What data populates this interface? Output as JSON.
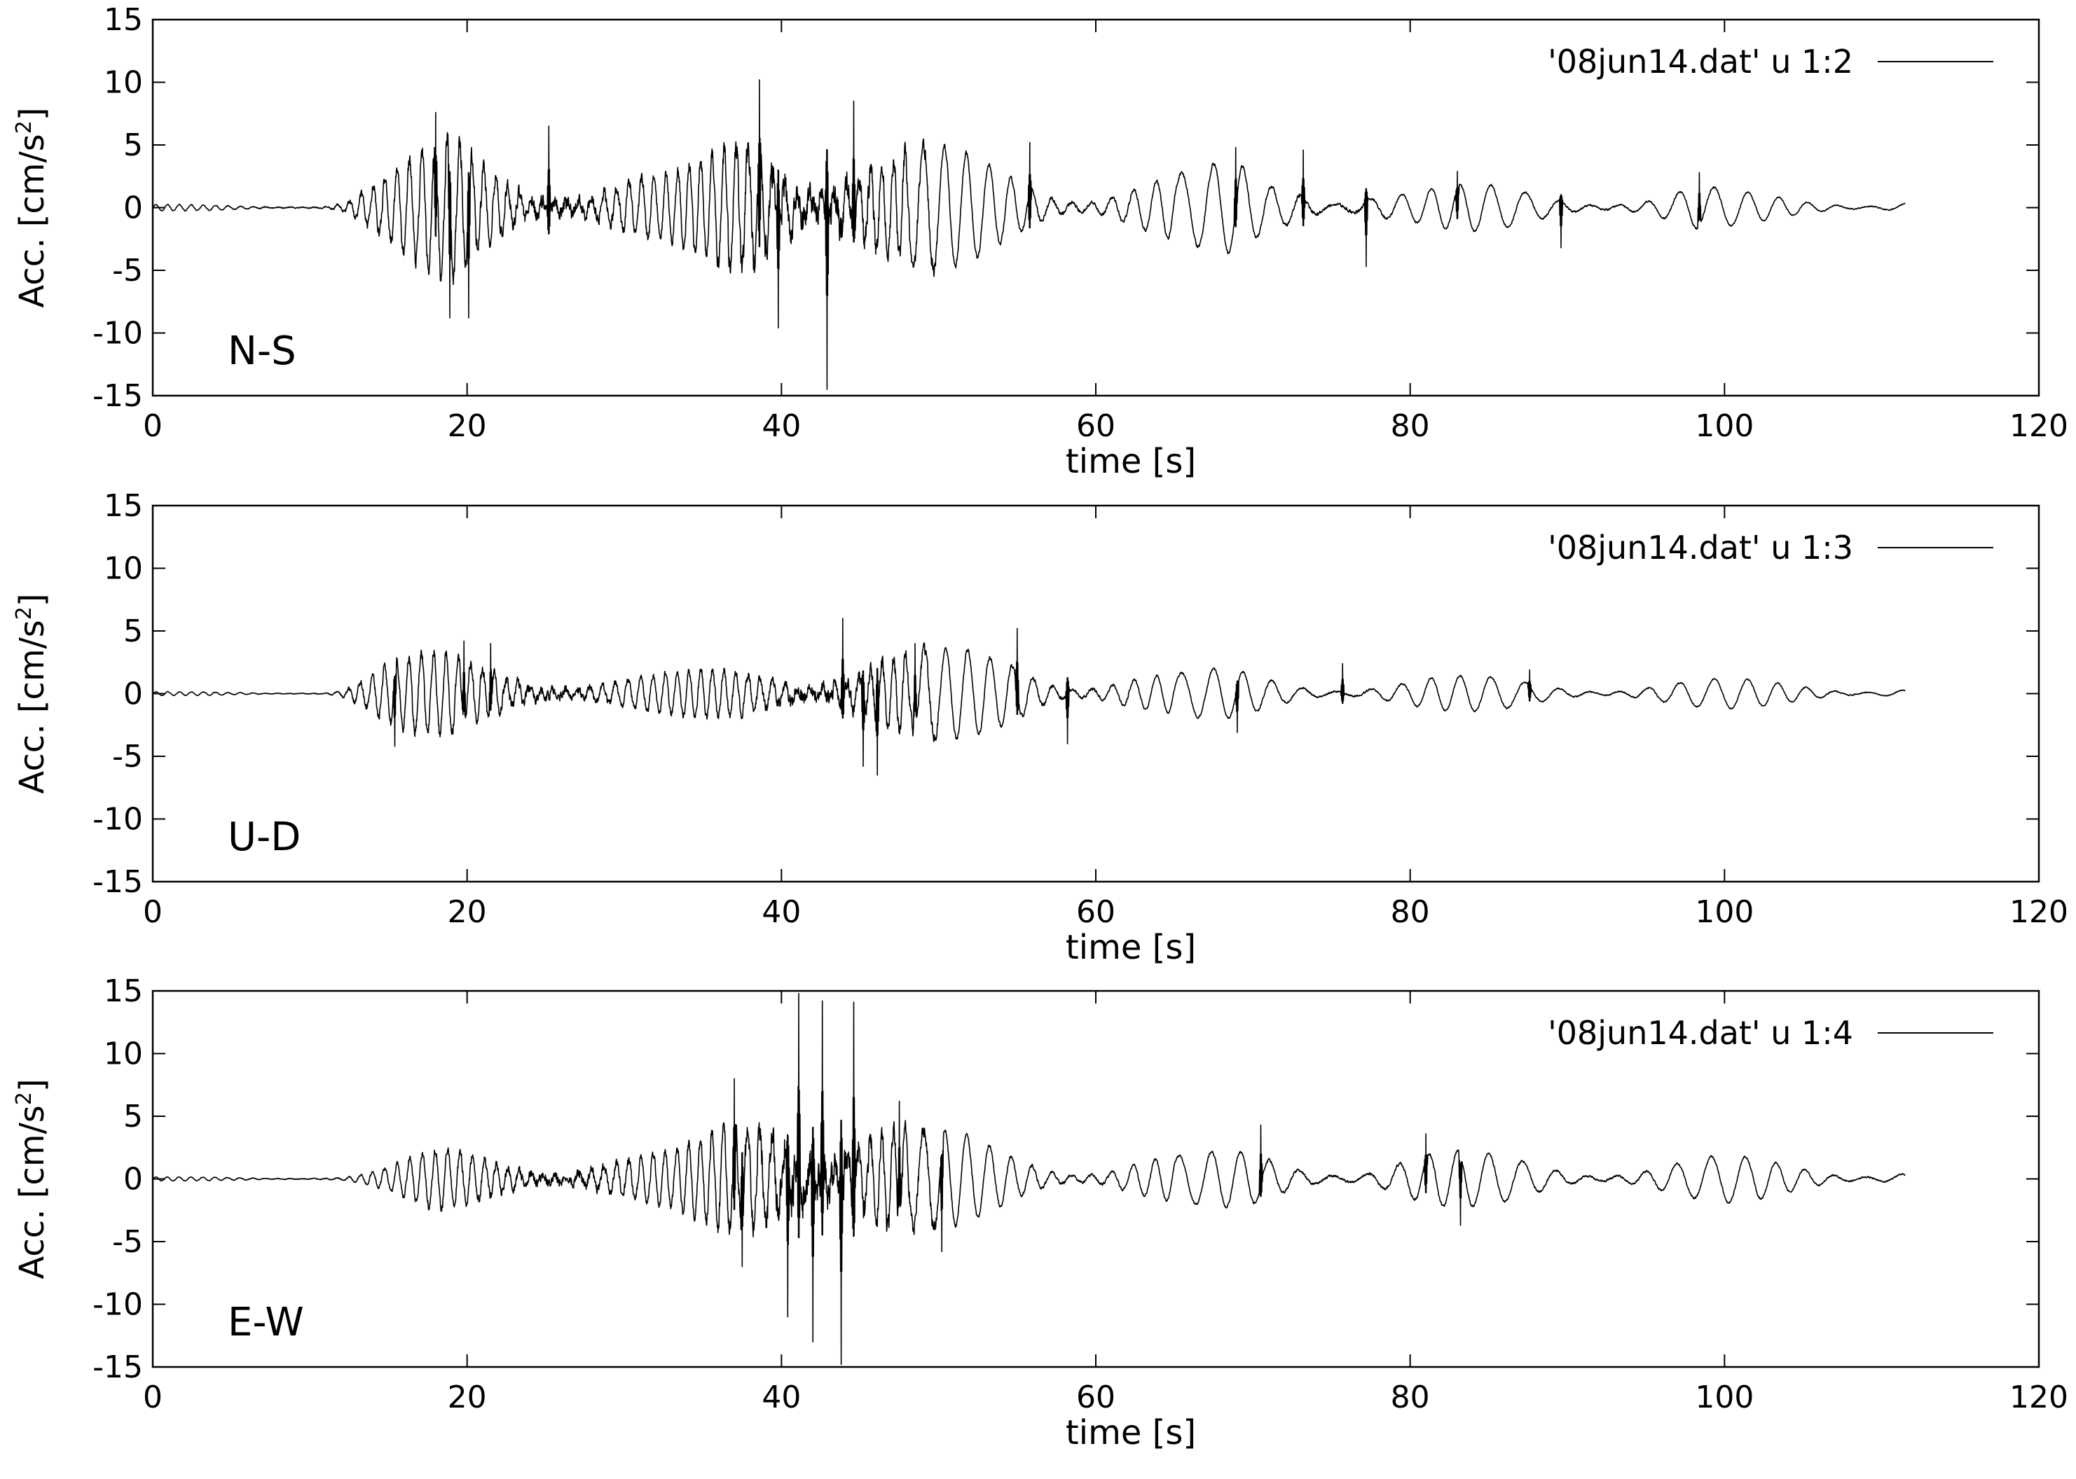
{
  "chart_data": [
    {
      "type": "line",
      "component": "N-S",
      "legend": "'08jun14.dat' u 1:2",
      "xlabel": "time [s]",
      "ylabel": "Acc. [cm/s2]",
      "ylabel_main": "Acc. [cm/s",
      "ylabel_sup": "2",
      "ylabel_close": "]",
      "xlim": [
        0,
        120
      ],
      "ylim": [
        -15,
        15
      ],
      "xticks": [
        "0",
        "20",
        "40",
        "60",
        "80",
        "100",
        "120"
      ],
      "yticks": [
        "15",
        "10",
        "5",
        "0",
        "-5",
        "-10",
        "-15"
      ],
      "legend_position": "top-right",
      "line_color": "#000000",
      "duration_s": 111.5,
      "envelope": [
        [
          0,
          0.25
        ],
        [
          11,
          0.3
        ],
        [
          12,
          0.8
        ],
        [
          13,
          1.8
        ],
        [
          15,
          3.2
        ],
        [
          17,
          4.5
        ],
        [
          19,
          6.5
        ],
        [
          21,
          5.0
        ],
        [
          24,
          4.2
        ],
        [
          26,
          4.5
        ],
        [
          28,
          3.2
        ],
        [
          30,
          3.3
        ],
        [
          33,
          2.8
        ],
        [
          35,
          4.0
        ],
        [
          37,
          6.5
        ],
        [
          38,
          8.2
        ],
        [
          39,
          9.5
        ],
        [
          40,
          8.5
        ],
        [
          42,
          8.0
        ],
        [
          43,
          10.5
        ],
        [
          45,
          7.5
        ],
        [
          47,
          5.8
        ],
        [
          50,
          5.0
        ],
        [
          53,
          4.3
        ],
        [
          55,
          4.2
        ],
        [
          57,
          3.8
        ],
        [
          60,
          3.4
        ],
        [
          63,
          3.2
        ],
        [
          66,
          3.0
        ],
        [
          69,
          4.0
        ],
        [
          71,
          2.8
        ],
        [
          73,
          3.6
        ],
        [
          75,
          2.7
        ],
        [
          77,
          3.3
        ],
        [
          80,
          1.8
        ],
        [
          85,
          1.9
        ],
        [
          90,
          1.8
        ],
        [
          95,
          1.4
        ],
        [
          98,
          2.0
        ],
        [
          101,
          1.3
        ],
        [
          105,
          1.0
        ],
        [
          111.5,
          1.0
        ]
      ],
      "peaks": [
        [
          18.0,
          7.6
        ],
        [
          18.9,
          -8.8
        ],
        [
          20.1,
          -8.8
        ],
        [
          25.2,
          6.5
        ],
        [
          38.6,
          10.2
        ],
        [
          39.8,
          -9.6
        ],
        [
          42.9,
          -14.5
        ],
        [
          44.6,
          8.5
        ],
        [
          55.8,
          5.2
        ],
        [
          68.9,
          4.8
        ],
        [
          73.2,
          4.6
        ],
        [
          77.2,
          -4.7
        ],
        [
          83.0,
          2.9
        ],
        [
          89.6,
          -3.2
        ],
        [
          98.4,
          2.8
        ]
      ],
      "seed": 11
    },
    {
      "type": "line",
      "component": "U-D",
      "legend": "'08jun14.dat' u 1:3",
      "xlabel": "time [s]",
      "ylabel": "Acc. [cm/s2]",
      "ylabel_main": "Acc. [cm/s",
      "ylabel_sup": "2",
      "ylabel_close": "]",
      "xlim": [
        0,
        120
      ],
      "ylim": [
        -15,
        15
      ],
      "xticks": [
        "0",
        "20",
        "40",
        "60",
        "80",
        "100",
        "120"
      ],
      "yticks": [
        "15",
        "10",
        "5",
        "0",
        "-5",
        "-10",
        "-15"
      ],
      "legend_position": "top-right",
      "line_color": "#000000",
      "duration_s": 111.5,
      "envelope": [
        [
          0,
          0.15
        ],
        [
          11,
          0.2
        ],
        [
          12,
          0.6
        ],
        [
          13,
          1.5
        ],
        [
          15,
          2.8
        ],
        [
          18,
          3.4
        ],
        [
          21,
          3.3
        ],
        [
          24,
          3.0
        ],
        [
          27,
          2.3
        ],
        [
          30,
          1.8
        ],
        [
          33,
          1.7
        ],
        [
          36,
          2.2
        ],
        [
          39,
          2.9
        ],
        [
          42,
          3.6
        ],
        [
          44,
          4.6
        ],
        [
          46,
          4.5
        ],
        [
          50,
          3.6
        ],
        [
          53,
          3.7
        ],
        [
          55,
          4.1
        ],
        [
          58,
          3.2
        ],
        [
          60,
          3.0
        ],
        [
          62,
          2.6
        ],
        [
          65,
          1.8
        ],
        [
          69,
          2.1
        ],
        [
          72,
          1.7
        ],
        [
          78,
          1.6
        ],
        [
          85,
          1.4
        ],
        [
          90,
          1.3
        ],
        [
          95,
          1.3
        ],
        [
          100,
          1.2
        ],
        [
          105,
          1.1
        ],
        [
          111.5,
          0.9
        ]
      ],
      "peaks": [
        [
          15.4,
          -4.2
        ],
        [
          19.8,
          4.2
        ],
        [
          21.5,
          4.0
        ],
        [
          43.9,
          6.0
        ],
        [
          45.2,
          -5.8
        ],
        [
          46.1,
          -6.5
        ],
        [
          48.5,
          4.0
        ],
        [
          55.0,
          5.2
        ],
        [
          58.2,
          -4.0
        ],
        [
          69.0,
          -3.1
        ],
        [
          75.7,
          2.4
        ],
        [
          87.6,
          1.9
        ]
      ],
      "seed": 22
    },
    {
      "type": "line",
      "component": "E-W",
      "legend": "'08jun14.dat' u 1:4",
      "xlabel": "time [s]",
      "ylabel": "Acc. [cm/s2]",
      "ylabel_main": "Acc. [cm/s",
      "ylabel_sup": "2",
      "ylabel_close": "]",
      "xlim": [
        0,
        120
      ],
      "ylim": [
        -15,
        15
      ],
      "xticks": [
        "0",
        "20",
        "40",
        "60",
        "80",
        "100",
        "120"
      ],
      "yticks": [
        "15",
        "10",
        "5",
        "0",
        "-5",
        "-10",
        "-15"
      ],
      "legend_position": "top-right",
      "line_color": "#000000",
      "duration_s": 111.5,
      "envelope": [
        [
          0,
          0.15
        ],
        [
          12,
          0.25
        ],
        [
          14,
          0.8
        ],
        [
          16,
          1.6
        ],
        [
          18,
          2.4
        ],
        [
          20,
          2.6
        ],
        [
          23,
          2.5
        ],
        [
          26,
          2.9
        ],
        [
          28,
          3.0
        ],
        [
          30,
          2.4
        ],
        [
          33,
          2.4
        ],
        [
          35,
          3.2
        ],
        [
          37,
          6.0
        ],
        [
          38,
          7.5
        ],
        [
          40,
          10.5
        ],
        [
          41,
          12.5
        ],
        [
          42,
          11.5
        ],
        [
          43,
          12.0
        ],
        [
          44,
          11.0
        ],
        [
          45,
          8.5
        ],
        [
          47,
          6.0
        ],
        [
          49,
          4.2
        ],
        [
          52,
          3.6
        ],
        [
          55,
          3.0
        ],
        [
          58,
          2.8
        ],
        [
          62,
          2.6
        ],
        [
          66,
          2.0
        ],
        [
          70,
          2.6
        ],
        [
          73,
          2.3
        ],
        [
          77,
          2.2
        ],
        [
          80,
          2.6
        ],
        [
          84,
          2.2
        ],
        [
          90,
          1.9
        ],
        [
          95,
          1.8
        ],
        [
          100,
          1.9
        ],
        [
          105,
          1.6
        ],
        [
          111.5,
          1.3
        ]
      ],
      "peaks": [
        [
          37.0,
          8.0
        ],
        [
          37.5,
          -7.0
        ],
        [
          41.1,
          14.8
        ],
        [
          40.4,
          -11.0
        ],
        [
          42.0,
          -13.0
        ],
        [
          42.6,
          14.2
        ],
        [
          43.8,
          -14.8
        ],
        [
          44.6,
          14.1
        ],
        [
          47.5,
          6.2
        ],
        [
          50.2,
          -5.8
        ],
        [
          70.5,
          4.3
        ],
        [
          81.0,
          3.6
        ],
        [
          83.2,
          -3.7
        ]
      ],
      "seed": 33
    }
  ]
}
